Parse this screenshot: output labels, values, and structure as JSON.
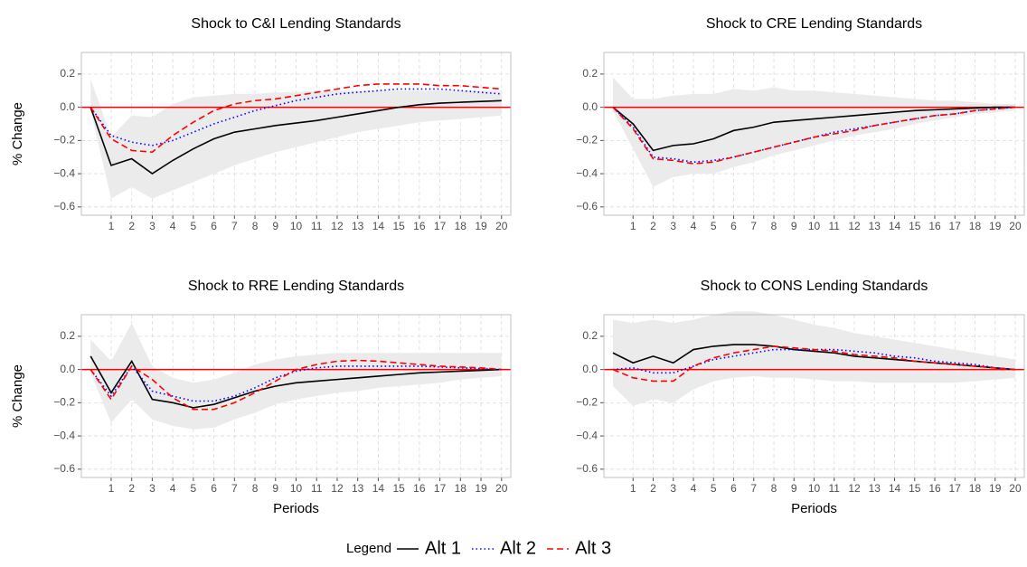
{
  "chart_data": [
    {
      "type": "line",
      "title": "Shock to C&I Lending Standards",
      "ylabel": "% Change",
      "x": [
        0,
        1,
        2,
        3,
        4,
        5,
        6,
        7,
        8,
        9,
        10,
        11,
        12,
        13,
        14,
        15,
        16,
        17,
        18,
        19,
        20
      ],
      "xlim": [
        -0.45,
        20.45
      ],
      "xticks": [
        1,
        2,
        3,
        4,
        5,
        6,
        7,
        8,
        9,
        10,
        11,
        12,
        13,
        14,
        15,
        16,
        17,
        18,
        19,
        20
      ],
      "ylim": [
        -0.65,
        0.33
      ],
      "yticks": [
        {
          "value": -0.6,
          "label": "−0.6"
        },
        {
          "value": -0.4,
          "label": "−0.4"
        },
        {
          "value": -0.2,
          "label": "−0.2"
        },
        {
          "value": 0,
          "label": "0.0"
        },
        0.2
      ],
      "grid": true,
      "hline": 0,
      "hline_color": "#ff0000",
      "band": {
        "color": "#ebebeb",
        "upper": [
          0.17,
          -0.18,
          -0.05,
          -0.06,
          0.02,
          0.06,
          0.07,
          0.08,
          0.08,
          0.09,
          0.09,
          0.1,
          0.1,
          0.1,
          0.1,
          0.1,
          0.1,
          0.1,
          0.1,
          0.1,
          0.1
        ],
        "lower": [
          -0.02,
          -0.55,
          -0.48,
          -0.55,
          -0.5,
          -0.45,
          -0.4,
          -0.35,
          -0.31,
          -0.27,
          -0.24,
          -0.21,
          -0.18,
          -0.15,
          -0.13,
          -0.11,
          -0.09,
          -0.08,
          -0.07,
          -0.06,
          -0.05
        ]
      },
      "series": [
        {
          "name": "Alt 1",
          "color": "#000000",
          "dash": "solid",
          "values": [
            0,
            -0.35,
            -0.31,
            -0.4,
            -0.32,
            -0.25,
            -0.19,
            -0.15,
            -0.13,
            -0.11,
            -0.095,
            -0.08,
            -0.06,
            -0.04,
            -0.02,
            0,
            0.015,
            0.025,
            0.03,
            0.035,
            0.04
          ]
        },
        {
          "name": "Alt 2",
          "color": "#0000ff",
          "dash": "dotted",
          "values": [
            0,
            -0.17,
            -0.21,
            -0.23,
            -0.2,
            -0.15,
            -0.1,
            -0.06,
            -0.02,
            0.01,
            0.04,
            0.06,
            0.08,
            0.09,
            0.1,
            0.11,
            0.11,
            0.11,
            0.1,
            0.09,
            0.08
          ]
        },
        {
          "name": "Alt 3",
          "color": "#ff0000",
          "dash": "dashed",
          "values": [
            0,
            -0.19,
            -0.26,
            -0.27,
            -0.17,
            -0.09,
            -0.02,
            0.02,
            0.04,
            0.05,
            0.07,
            0.09,
            0.11,
            0.13,
            0.14,
            0.14,
            0.14,
            0.13,
            0.13,
            0.12,
            0.11
          ]
        }
      ]
    },
    {
      "type": "line",
      "title": "Shock to CRE Lending Standards",
      "x": [
        0,
        1,
        2,
        3,
        4,
        5,
        6,
        7,
        8,
        9,
        10,
        11,
        12,
        13,
        14,
        15,
        16,
        17,
        18,
        19,
        20
      ],
      "xlim": [
        -0.45,
        20.45
      ],
      "xticks": [
        1,
        2,
        3,
        4,
        5,
        6,
        7,
        8,
        9,
        10,
        11,
        12,
        13,
        14,
        15,
        16,
        17,
        18,
        19,
        20
      ],
      "ylim": [
        -0.65,
        0.33
      ],
      "yticks": [
        {
          "value": -0.6,
          "label": "−0.6"
        },
        {
          "value": -0.4,
          "label": "−0.4"
        },
        {
          "value": -0.2,
          "label": "−0.2"
        },
        {
          "value": 0,
          "label": "0.0"
        },
        0.2
      ],
      "grid": true,
      "hline": 0,
      "hline_color": "#ff0000",
      "band": {
        "color": "#ebebeb",
        "upper": [
          0.18,
          0.05,
          0.05,
          0.07,
          0.08,
          0.08,
          0.11,
          0.1,
          0.12,
          0.1,
          0.1,
          0.09,
          0.08,
          0.07,
          0.06,
          0.05,
          0.04,
          0.04,
          0.03,
          0.02,
          0.02
        ],
        "lower": [
          -0.02,
          -0.25,
          -0.48,
          -0.42,
          -0.4,
          -0.4,
          -0.36,
          -0.33,
          -0.29,
          -0.26,
          -0.23,
          -0.2,
          -0.17,
          -0.15,
          -0.13,
          -0.1,
          -0.08,
          -0.06,
          -0.04,
          -0.03,
          -0.02
        ]
      },
      "series": [
        {
          "name": "Alt 1",
          "color": "#000000",
          "dash": "solid",
          "values": [
            0,
            -0.1,
            -0.26,
            -0.23,
            -0.22,
            -0.19,
            -0.14,
            -0.12,
            -0.09,
            -0.08,
            -0.07,
            -0.06,
            -0.05,
            -0.04,
            -0.03,
            -0.02,
            -0.015,
            -0.01,
            -0.005,
            0,
            0
          ]
        },
        {
          "name": "Alt 2",
          "color": "#0000ff",
          "dash": "dotted",
          "values": [
            0,
            -0.12,
            -0.3,
            -0.31,
            -0.33,
            -0.32,
            -0.3,
            -0.27,
            -0.24,
            -0.21,
            -0.18,
            -0.15,
            -0.13,
            -0.11,
            -0.09,
            -0.07,
            -0.05,
            -0.04,
            -0.02,
            -0.01,
            0
          ]
        },
        {
          "name": "Alt 3",
          "color": "#ff0000",
          "dash": "dashed",
          "values": [
            0,
            -0.13,
            -0.31,
            -0.32,
            -0.34,
            -0.33,
            -0.3,
            -0.27,
            -0.24,
            -0.21,
            -0.18,
            -0.16,
            -0.14,
            -0.11,
            -0.09,
            -0.07,
            -0.05,
            -0.04,
            -0.02,
            -0.01,
            0
          ]
        }
      ]
    },
    {
      "type": "line",
      "title": "Shock to RRE Lending Standards",
      "ylabel": "% Change",
      "xlabel": "Periods",
      "x": [
        0,
        1,
        2,
        3,
        4,
        5,
        6,
        7,
        8,
        9,
        10,
        11,
        12,
        13,
        14,
        15,
        16,
        17,
        18,
        19,
        20
      ],
      "xlim": [
        -0.45,
        20.45
      ],
      "xticks": [
        1,
        2,
        3,
        4,
        5,
        6,
        7,
        8,
        9,
        10,
        11,
        12,
        13,
        14,
        15,
        16,
        17,
        18,
        19,
        20
      ],
      "ylim": [
        -0.65,
        0.33
      ],
      "yticks": [
        {
          "value": -0.6,
          "label": "−0.6"
        },
        {
          "value": -0.4,
          "label": "−0.4"
        },
        {
          "value": -0.2,
          "label": "−0.2"
        },
        {
          "value": 0,
          "label": "0.0"
        },
        0.2
      ],
      "grid": true,
      "hline": 0,
      "hline_color": "#ff0000",
      "band": {
        "color": "#ebebeb",
        "upper": [
          0.18,
          0.05,
          0.28,
          0.02,
          -0.05,
          -0.08,
          -0.06,
          -0.02,
          0.03,
          0.06,
          0.08,
          0.09,
          0.1,
          0.1,
          0.1,
          0.1,
          0.1,
          0.1,
          0.1,
          0.1,
          0.1
        ],
        "lower": [
          -0.02,
          -0.32,
          -0.18,
          -0.3,
          -0.34,
          -0.36,
          -0.35,
          -0.3,
          -0.26,
          -0.21,
          -0.18,
          -0.16,
          -0.14,
          -0.13,
          -0.11,
          -0.1,
          -0.09,
          -0.08,
          -0.06,
          -0.05,
          -0.04
        ]
      },
      "series": [
        {
          "name": "Alt 1",
          "color": "#000000",
          "dash": "solid",
          "values": [
            0.08,
            -0.14,
            0.05,
            -0.18,
            -0.2,
            -0.23,
            -0.21,
            -0.17,
            -0.13,
            -0.1,
            -0.08,
            -0.07,
            -0.06,
            -0.05,
            -0.04,
            -0.03,
            -0.02,
            -0.015,
            -0.01,
            -0.005,
            0
          ]
        },
        {
          "name": "Alt 2",
          "color": "#0000ff",
          "dash": "dotted",
          "values": [
            0,
            -0.16,
            0.02,
            -0.13,
            -0.16,
            -0.19,
            -0.19,
            -0.16,
            -0.11,
            -0.05,
            -0.01,
            0.01,
            0.02,
            0.02,
            0.02,
            0.02,
            0.02,
            0.015,
            0.01,
            0.005,
            0
          ]
        },
        {
          "name": "Alt 3",
          "color": "#ff0000",
          "dash": "dashed",
          "values": [
            0,
            -0.18,
            0.02,
            -0.06,
            -0.17,
            -0.24,
            -0.24,
            -0.2,
            -0.14,
            -0.07,
            0,
            0.03,
            0.05,
            0.055,
            0.05,
            0.04,
            0.03,
            0.02,
            0.015,
            0.01,
            0
          ]
        }
      ]
    },
    {
      "type": "line",
      "title": "Shock to CONS Lending Standards",
      "xlabel": "Periods",
      "x": [
        0,
        1,
        2,
        3,
        4,
        5,
        6,
        7,
        8,
        9,
        10,
        11,
        12,
        13,
        14,
        15,
        16,
        17,
        18,
        19,
        20
      ],
      "xlim": [
        -0.45,
        20.45
      ],
      "xticks": [
        1,
        2,
        3,
        4,
        5,
        6,
        7,
        8,
        9,
        10,
        11,
        12,
        13,
        14,
        15,
        16,
        17,
        18,
        19,
        20
      ],
      "ylim": [
        -0.65,
        0.33
      ],
      "yticks": [
        {
          "value": -0.6,
          "label": "−0.6"
        },
        {
          "value": -0.4,
          "label": "−0.4"
        },
        {
          "value": -0.2,
          "label": "−0.2"
        },
        {
          "value": 0,
          "label": "0.0"
        },
        0.2
      ],
      "grid": true,
      "hline": 0,
      "hline_color": "#ff0000",
      "band": {
        "color": "#ebebeb",
        "upper": [
          0.3,
          0.28,
          0.3,
          0.28,
          0.3,
          0.33,
          0.35,
          0.35,
          0.33,
          0.3,
          0.27,
          0.25,
          0.22,
          0.2,
          0.18,
          0.16,
          0.14,
          0.12,
          0.1,
          0.08,
          0.06
        ],
        "lower": [
          -0.1,
          -0.22,
          -0.18,
          -0.2,
          -0.12,
          -0.07,
          -0.05,
          -0.04,
          -0.05,
          -0.05,
          -0.06,
          -0.07,
          -0.07,
          -0.08,
          -0.08,
          -0.08,
          -0.08,
          -0.08,
          -0.07,
          -0.06,
          -0.05
        ]
      },
      "series": [
        {
          "name": "Alt 1",
          "color": "#000000",
          "dash": "solid",
          "values": [
            0.1,
            0.04,
            0.08,
            0.04,
            0.12,
            0.14,
            0.15,
            0.15,
            0.14,
            0.12,
            0.11,
            0.1,
            0.08,
            0.07,
            0.06,
            0.05,
            0.04,
            0.03,
            0.02,
            0.01,
            0
          ]
        },
        {
          "name": "Alt 2",
          "color": "#0000ff",
          "dash": "dotted",
          "values": [
            0,
            0.01,
            -0.02,
            -0.02,
            0.02,
            0.06,
            0.08,
            0.1,
            0.12,
            0.12,
            0.12,
            0.12,
            0.11,
            0.1,
            0.08,
            0.07,
            0.05,
            0.04,
            0.03,
            0.01,
            0
          ]
        },
        {
          "name": "Alt 3",
          "color": "#ff0000",
          "dash": "dashed",
          "values": [
            0,
            -0.05,
            -0.07,
            -0.07,
            0.02,
            0.07,
            0.1,
            0.12,
            0.14,
            0.13,
            0.12,
            0.11,
            0.09,
            0.08,
            0.07,
            0.05,
            0.04,
            0.03,
            0.02,
            0.01,
            0
          ]
        }
      ]
    }
  ],
  "legend": {
    "title": "Legend",
    "position": "bottom"
  }
}
